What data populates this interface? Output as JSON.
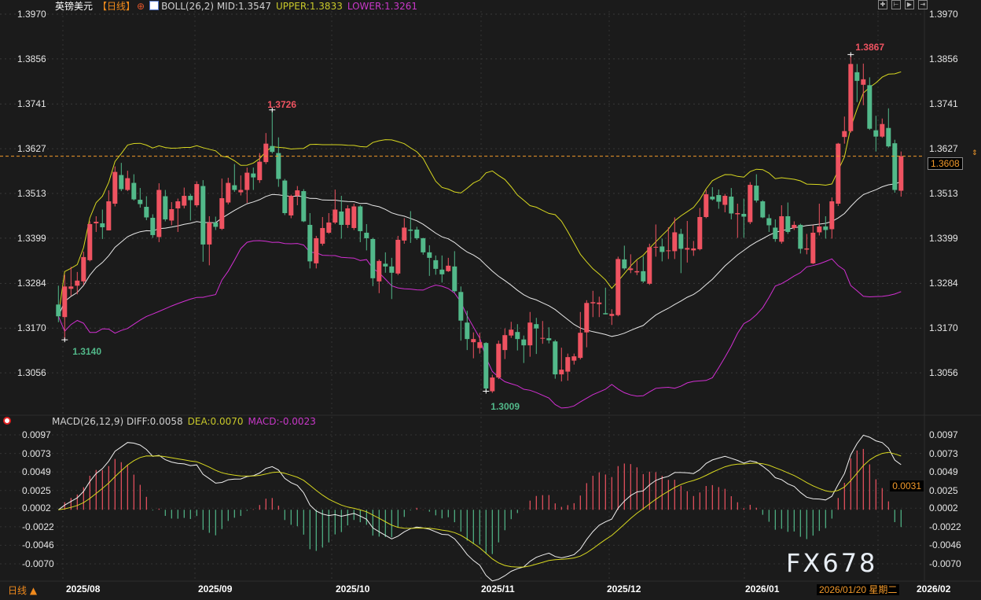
{
  "header": {
    "symbol": "英镑美元",
    "period": "【日线】",
    "boll_label": "BOLL(26,2) MID:1.3547",
    "upper_label": "UPPER:1.3833",
    "lower_label": "LOWER:1.3261"
  },
  "macd_header": {
    "label": "MACD(26,12,9) DIFF:0.0058",
    "dea_label": "DEA:0.0070",
    "macd_label": "MACD:-0.0023"
  },
  "toolbar": {
    "icons": [
      "crosshair-icon",
      "zoom-range-icon",
      "play-range-icon",
      "move-right-icon"
    ]
  },
  "period_switch": "日线 ▲",
  "current_price_tag": "1.3608",
  "current_macd_tag": "0.0031",
  "cursor_date": "2026/01/20 星期二",
  "watermark": "FX678",
  "colors": {
    "up": "#ef5361",
    "down": "#52b98a",
    "mid": "#e8e8e8",
    "upper": "#d8d820",
    "lower": "#d22fd2",
    "last_price": "#f39a2b",
    "background": "#1b1b1b"
  },
  "chart_data": [
    {
      "type": "candlestick",
      "title": "英镑美元",
      "y_ticks": [
        "1.3970",
        "1.3856",
        "1.3741",
        "1.3627",
        "1.3513",
        "1.3399",
        "1.3284",
        "1.3170",
        "1.3056"
      ],
      "ylim": [
        1.2956,
        1.397
      ],
      "x_tick_labels": [
        "2025/08",
        "2025/09",
        "2025/10",
        "2025/11",
        "2025/12",
        "2026/01",
        "2026/02"
      ],
      "annotations": {
        "high1": "1.3726",
        "low1": "1.3140",
        "low2": "1.3009",
        "high2": "1.3867"
      },
      "last_price": 1.3608,
      "indicator": "BOLL(26,2)",
      "candles_ohlc": [
        [
          1.323,
          1.3278,
          1.3185,
          1.32
        ],
        [
          1.3198,
          1.3306,
          1.314,
          1.3276
        ],
        [
          1.327,
          1.3326,
          1.3252,
          1.3276
        ],
        [
          1.3278,
          1.3313,
          1.3256,
          1.3291
        ],
        [
          1.3289,
          1.3365,
          1.328,
          1.3351
        ],
        [
          1.3343,
          1.3442,
          1.334,
          1.3435
        ],
        [
          1.3437,
          1.3455,
          1.3415,
          1.3441
        ],
        [
          1.3437,
          1.3472,
          1.3397,
          1.3427
        ],
        [
          1.3419,
          1.3521,
          1.3419,
          1.3493
        ],
        [
          1.3487,
          1.3582,
          1.348,
          1.3568
        ],
        [
          1.356,
          1.3591,
          1.3519,
          1.3524
        ],
        [
          1.3522,
          1.3571,
          1.3519,
          1.3552
        ],
        [
          1.354,
          1.3562,
          1.3495,
          1.3498
        ],
        [
          1.3497,
          1.3527,
          1.3477,
          1.3486
        ],
        [
          1.3479,
          1.3506,
          1.3445,
          1.3452
        ],
        [
          1.3451,
          1.346,
          1.34,
          1.3407
        ],
        [
          1.3402,
          1.3539,
          1.3389,
          1.3522
        ],
        [
          1.3506,
          1.3522,
          1.3442,
          1.3447
        ],
        [
          1.3444,
          1.3491,
          1.3432,
          1.3473
        ],
        [
          1.3475,
          1.35,
          1.3415,
          1.3493
        ],
        [
          1.3482,
          1.3528,
          1.3475,
          1.3507
        ],
        [
          1.3507,
          1.3512,
          1.3444,
          1.3496
        ],
        [
          1.3483,
          1.3544,
          1.3478,
          1.3537
        ],
        [
          1.3532,
          1.3547,
          1.3339,
          1.3383
        ],
        [
          1.3383,
          1.3455,
          1.333,
          1.3439
        ],
        [
          1.3439,
          1.3454,
          1.342,
          1.3428
        ],
        [
          1.3423,
          1.3551,
          1.342,
          1.3501
        ],
        [
          1.349,
          1.3553,
          1.3485,
          1.354
        ],
        [
          1.3534,
          1.3588,
          1.3517,
          1.3522
        ],
        [
          1.3516,
          1.3559,
          1.3508,
          1.3522
        ],
        [
          1.3522,
          1.3579,
          1.3489,
          1.3566
        ],
        [
          1.3564,
          1.3579,
          1.3522,
          1.3554
        ],
        [
          1.3547,
          1.3616,
          1.354,
          1.3594
        ],
        [
          1.3593,
          1.3667,
          1.3588,
          1.364
        ],
        [
          1.3634,
          1.3726,
          1.3615,
          1.3619
        ],
        [
          1.3616,
          1.3656,
          1.353,
          1.355
        ],
        [
          1.3546,
          1.355,
          1.3458,
          1.3463
        ],
        [
          1.3457,
          1.351,
          1.345,
          1.3507
        ],
        [
          1.3507,
          1.3532,
          1.3483,
          1.3521
        ],
        [
          1.3519,
          1.3524,
          1.344,
          1.3442
        ],
        [
          1.3433,
          1.3463,
          1.3322,
          1.334
        ],
        [
          1.3335,
          1.3405,
          1.3322,
          1.3399
        ],
        [
          1.3385,
          1.3453,
          1.338,
          1.3425
        ],
        [
          1.3413,
          1.3463,
          1.341,
          1.3439
        ],
        [
          1.3439,
          1.3523,
          1.3435,
          1.3472
        ],
        [
          1.3467,
          1.3507,
          1.3398,
          1.3433
        ],
        [
          1.3433,
          1.3483,
          1.3425,
          1.3475
        ],
        [
          1.3425,
          1.3487,
          1.342,
          1.348
        ],
        [
          1.348,
          1.3483,
          1.3389,
          1.3417
        ],
        [
          1.3413,
          1.3435,
          1.3368,
          1.3399
        ],
        [
          1.3397,
          1.34,
          1.3277,
          1.3297
        ],
        [
          1.3289,
          1.3345,
          1.3259,
          1.3341
        ],
        [
          1.3334,
          1.3363,
          1.3311,
          1.3327
        ],
        [
          1.3327,
          1.3349,
          1.3244,
          1.3311
        ],
        [
          1.3309,
          1.3405,
          1.3305,
          1.3395
        ],
        [
          1.3393,
          1.345,
          1.3385,
          1.3426
        ],
        [
          1.3421,
          1.3468,
          1.3387,
          1.3418
        ],
        [
          1.3421,
          1.3428,
          1.3395,
          1.3399
        ],
        [
          1.3399,
          1.34,
          1.3357,
          1.3363
        ],
        [
          1.3363,
          1.3381,
          1.3303,
          1.3349
        ],
        [
          1.3343,
          1.3355,
          1.3306,
          1.3321
        ],
        [
          1.3319,
          1.3355,
          1.3286,
          1.3307
        ],
        [
          1.3315,
          1.3349,
          1.3313,
          1.3329
        ],
        [
          1.3327,
          1.3366,
          1.326,
          1.3264
        ],
        [
          1.3262,
          1.3276,
          1.3138,
          1.3189
        ],
        [
          1.3184,
          1.3214,
          1.3114,
          1.3142
        ],
        [
          1.3134,
          1.3159,
          1.3093,
          1.3142
        ],
        [
          1.3119,
          1.3158,
          1.3105,
          1.3134
        ],
        [
          1.3132,
          1.3134,
          1.3009,
          1.3016
        ],
        [
          1.3009,
          1.3051,
          1.3005,
          1.3044
        ],
        [
          1.3044,
          1.3138,
          1.304,
          1.313
        ],
        [
          1.3114,
          1.3169,
          1.3091,
          1.3152
        ],
        [
          1.3151,
          1.3186,
          1.3145,
          1.3166
        ],
        [
          1.316,
          1.318,
          1.3113,
          1.3142
        ],
        [
          1.3141,
          1.3151,
          1.3081,
          1.3126
        ],
        [
          1.3126,
          1.3211,
          1.3097,
          1.3184
        ],
        [
          1.318,
          1.3196,
          1.3104,
          1.3169
        ],
        [
          1.3144,
          1.3188,
          1.313,
          1.3145
        ],
        [
          1.3144,
          1.3172,
          1.3131,
          1.3139
        ],
        [
          1.3136,
          1.314,
          1.3041,
          1.3052
        ],
        [
          1.3052,
          1.312,
          1.3034,
          1.3064
        ],
        [
          1.3059,
          1.3105,
          1.3036,
          1.3096
        ],
        [
          1.3087,
          1.3105,
          1.3077,
          1.3098
        ],
        [
          1.3094,
          1.3211,
          1.309,
          1.3158
        ],
        [
          1.3159,
          1.3241,
          1.3121,
          1.3234
        ],
        [
          1.3233,
          1.3265,
          1.3198,
          1.3236
        ],
        [
          1.3231,
          1.325,
          1.3198,
          1.3235
        ],
        [
          1.3208,
          1.3273,
          1.3205,
          1.3205
        ],
        [
          1.3201,
          1.3218,
          1.3178,
          1.3206
        ],
        [
          1.3203,
          1.3352,
          1.32,
          1.3346
        ],
        [
          1.3345,
          1.338,
          1.3318,
          1.3322
        ],
        [
          1.3318,
          1.3358,
          1.331,
          1.3322
        ],
        [
          1.3312,
          1.3342,
          1.3305,
          1.3315
        ],
        [
          1.3315,
          1.3353,
          1.3285,
          1.3289
        ],
        [
          1.3283,
          1.3385,
          1.328,
          1.3376
        ],
        [
          1.3375,
          1.3434,
          1.3352,
          1.3377
        ],
        [
          1.3378,
          1.3398,
          1.334,
          1.3364
        ],
        [
          1.3366,
          1.3427,
          1.3346,
          1.3368
        ],
        [
          1.3366,
          1.3452,
          1.3346,
          1.3414
        ],
        [
          1.341,
          1.3423,
          1.331,
          1.3372
        ],
        [
          1.337,
          1.3443,
          1.3337,
          1.3374
        ],
        [
          1.3368,
          1.3392,
          1.3354,
          1.3373
        ],
        [
          1.3371,
          1.3476,
          1.3368,
          1.3453
        ],
        [
          1.3453,
          1.3522,
          1.345,
          1.3511
        ],
        [
          1.3505,
          1.3529,
          1.3495,
          1.3498
        ],
        [
          1.3509,
          1.3523,
          1.3474,
          1.3492
        ],
        [
          1.3484,
          1.3512,
          1.3465,
          1.3507
        ],
        [
          1.3505,
          1.3527,
          1.3447,
          1.3462
        ],
        [
          1.346,
          1.3487,
          1.34,
          1.3463
        ],
        [
          1.3461,
          1.35,
          1.34,
          1.3454
        ],
        [
          1.344,
          1.3542,
          1.3435,
          1.3535
        ],
        [
          1.3533,
          1.3562,
          1.349,
          1.3495
        ],
        [
          1.3493,
          1.3496,
          1.345,
          1.3452
        ],
        [
          1.345,
          1.346,
          1.3415,
          1.3432
        ],
        [
          1.3426,
          1.3447,
          1.339,
          1.3397
        ],
        [
          1.339,
          1.3483,
          1.3385,
          1.3455
        ],
        [
          1.3455,
          1.349,
          1.341,
          1.3415
        ],
        [
          1.3425,
          1.3442,
          1.342,
          1.3433
        ],
        [
          1.3433,
          1.3436,
          1.336,
          1.3372
        ],
        [
          1.337,
          1.341,
          1.3358,
          1.3373
        ],
        [
          1.3335,
          1.3432,
          1.3333,
          1.3413
        ],
        [
          1.3414,
          1.3487,
          1.3406,
          1.3429
        ],
        [
          1.3429,
          1.3455,
          1.3398,
          1.342
        ],
        [
          1.3422,
          1.3503,
          1.3398,
          1.3493
        ],
        [
          1.3487,
          1.3642,
          1.3481,
          1.364
        ],
        [
          1.3657,
          1.3709,
          1.364,
          1.3672
        ],
        [
          1.3672,
          1.3867,
          1.3668,
          1.3843
        ],
        [
          1.3822,
          1.3843,
          1.3746,
          1.38
        ],
        [
          1.379,
          1.3844,
          1.3738,
          1.3804
        ],
        [
          1.3789,
          1.3809,
          1.3675,
          1.3678
        ],
        [
          1.3674,
          1.3711,
          1.362,
          1.3658
        ],
        [
          1.3658,
          1.3704,
          1.3655,
          1.369
        ],
        [
          1.368,
          1.373,
          1.363,
          1.3633
        ],
        [
          1.3641,
          1.365,
          1.3515,
          1.3522
        ],
        [
          1.352,
          1.362,
          1.3505,
          1.3608
        ]
      ]
    },
    {
      "type": "bar+line",
      "title": "MACD(26,12,9)",
      "y_ticks": [
        "0.0097",
        "0.0073",
        "0.0049",
        "0.0025",
        "0.0002",
        "-0.0022",
        "-0.0046",
        "-0.0070"
      ],
      "ylim": [
        -0.008,
        0.0097
      ],
      "series_labels": {
        "diff": "DIFF:0.0058",
        "dea": "DEA:0.0070",
        "macd": "MACD:-0.0023"
      }
    }
  ]
}
